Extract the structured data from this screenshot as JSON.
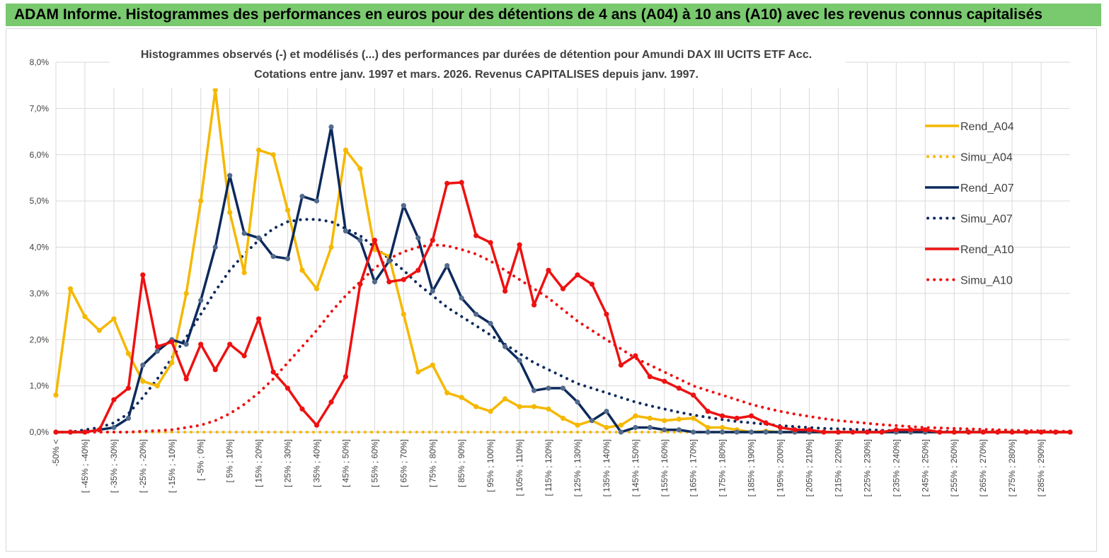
{
  "header": {
    "title": "ADAM Informe. Histogrammes des performances en euros pour des détentions de 4 ans (A04) à 10 ans (A10) avec les revenus connus capitalisés"
  },
  "chart_data": {
    "type": "line",
    "title": "Histogrammes observés (-) et modélisés (...) des performances par durées de détention pour Amundi DAX III UCITS ETF Acc.",
    "subtitle": "Cotations entre janv. 1997 et mars. 2026. Revenus CAPITALISES depuis janv. 1997.",
    "ylim": [
      0,
      8
    ],
    "yticks": [
      0,
      1,
      2,
      3,
      4,
      5,
      6,
      7,
      8
    ],
    "ytick_labels": [
      "0,0%",
      "1,0%",
      "2,0%",
      "3,0%",
      "4,0%",
      "5,0%",
      "6,0%",
      "7,0%",
      "8,0%"
    ],
    "x_tick_labels": [
      "-50% <",
      "[ -45% ; -40%]",
      "[ -35% ; -30%]",
      "[ -25% ; -20%]",
      "[ -15% ; -10%]",
      "[ -5% ; 0%]",
      "[ 5% ; 10%]",
      "[ 15% ; 20%]",
      "[ 25% ; 30%]",
      "[ 35% ; 40%]",
      "[ 45% ; 50%]",
      "[ 55% ; 60%]",
      "[ 65% ; 70%]",
      "[ 75% ; 80%]",
      "[ 85% ; 90%]",
      "[ 95% ; 100%]",
      "[ 105% ; 110%]",
      "[ 115% ; 120%]",
      "[ 125% ; 130%]",
      "[ 135% ; 140%]",
      "[ 145% ; 150%]",
      "[ 155% ; 160%]",
      "[ 165% ; 170%]",
      "[ 175% ; 180%]",
      "[ 185% ; 190%]",
      "[ 195% ; 200%]",
      "[ 205% ; 210%]",
      "[ 215% ; 220%]",
      "[ 225% ; 230%]",
      "[ 235% ; 240%]",
      "[ 245% ; 250%]",
      "[ 255% ; 260%]",
      "[ 265% ; 270%]",
      "[ 275% ; 280%]",
      "[ 285% ; 290%]"
    ],
    "series": [
      {
        "name": "Rend_A04",
        "style": "solid",
        "color": "#f5b800",
        "values": [
          0.8,
          3.1,
          2.5,
          2.2,
          2.45,
          1.7,
          1.1,
          1.0,
          1.5,
          3.0,
          5.0,
          7.4,
          4.75,
          3.45,
          6.1,
          6.0,
          4.8,
          3.5,
          3.1,
          4.0,
          6.1,
          5.7,
          3.95,
          3.8,
          2.55,
          1.3,
          1.45,
          0.85,
          0.75,
          0.55,
          0.45,
          0.72,
          0.55,
          0.55,
          0.5,
          0.3,
          0.15,
          0.25,
          0.1,
          0.15,
          0.35,
          0.3,
          0.25,
          0.28,
          0.3,
          0.1,
          0.1,
          0.05,
          0.0,
          0.02,
          0.0,
          0.0,
          0.0,
          0.0,
          0.0,
          0.0,
          0.0,
          0.0,
          0.0,
          0.0,
          0.0,
          0.0,
          0.0,
          0.0,
          0.0,
          0.0,
          0.0,
          0.0,
          0.0,
          0.0,
          0.0
        ]
      },
      {
        "name": "Simu_A04",
        "style": "dotted",
        "color": "#f5b800",
        "values": [
          0.0,
          0.0,
          0.0,
          0.0,
          0.0,
          0.0,
          0.0,
          0.0,
          0.0,
          0.0,
          0.0,
          0.0,
          0.0,
          0.0,
          0.0,
          0.0,
          0.0,
          0.0,
          0.0,
          0.0,
          0.0,
          0.0,
          0.0,
          0.0,
          0.0,
          0.0,
          0.0,
          0.0,
          0.0,
          0.0,
          0.0,
          0.0,
          0.0,
          0.0,
          0.0,
          0.0,
          0.0,
          0.0,
          0.0,
          0.0,
          0.0,
          0.0,
          0.0,
          0.0,
          0.0,
          0.0,
          0.0,
          0.0,
          0.0,
          0.0,
          0.0,
          0.0,
          0.0,
          0.0,
          0.0,
          0.0,
          0.0,
          0.0,
          0.0,
          0.0,
          0.0,
          0.0,
          0.0,
          0.0,
          0.0,
          0.0,
          0.0,
          0.0,
          0.0,
          0.0,
          0.0
        ]
      },
      {
        "name": "Rend_A07",
        "style": "solid",
        "color": "#0d2a5c",
        "values": [
          0.0,
          0.0,
          0.0,
          0.05,
          0.1,
          0.3,
          1.45,
          1.75,
          2.0,
          1.9,
          2.85,
          4.0,
          5.55,
          4.3,
          4.2,
          3.8,
          3.75,
          5.1,
          5.0,
          6.6,
          4.35,
          4.15,
          3.25,
          3.7,
          4.9,
          4.2,
          3.05,
          3.6,
          2.9,
          2.55,
          2.35,
          1.85,
          1.55,
          0.9,
          0.95,
          0.95,
          0.65,
          0.25,
          0.45,
          0.0,
          0.1,
          0.1,
          0.05,
          0.05,
          0.0,
          0.0,
          0.0,
          0.0,
          0.0,
          0.0,
          0.0,
          0.0,
          0.0,
          0.0,
          0.0,
          0.0,
          0.0,
          0.0,
          0.0,
          0.0,
          0.0,
          0.0,
          0.0,
          0.0,
          0.0,
          0.0,
          0.0,
          0.0,
          0.0,
          0.0,
          0.0
        ]
      },
      {
        "name": "Simu_A07",
        "style": "dotted",
        "color": "#0d2a5c",
        "values": [
          0.0,
          0.0,
          0.05,
          0.1,
          0.2,
          0.4,
          0.75,
          1.15,
          1.6,
          2.05,
          2.55,
          3.05,
          3.5,
          3.85,
          4.15,
          4.4,
          4.55,
          4.6,
          4.6,
          4.55,
          4.4,
          4.25,
          4.0,
          3.75,
          3.5,
          3.2,
          2.95,
          2.7,
          2.5,
          2.3,
          2.1,
          1.9,
          1.7,
          1.5,
          1.35,
          1.2,
          1.05,
          0.95,
          0.85,
          0.75,
          0.65,
          0.57,
          0.5,
          0.43,
          0.37,
          0.32,
          0.27,
          0.23,
          0.2,
          0.17,
          0.14,
          0.12,
          0.1,
          0.08,
          0.07,
          0.06,
          0.05,
          0.04,
          0.03,
          0.03,
          0.02,
          0.02,
          0.01,
          0.01,
          0.01,
          0.01,
          0.0,
          0.0,
          0.0,
          0.0,
          0.0
        ]
      },
      {
        "name": "Rend_A10",
        "style": "solid",
        "color": "#ee1111",
        "values": [
          0.0,
          0.0,
          0.0,
          0.05,
          0.7,
          0.95,
          3.4,
          1.85,
          1.95,
          1.15,
          1.9,
          1.35,
          1.9,
          1.65,
          2.45,
          1.3,
          0.95,
          0.5,
          0.15,
          0.65,
          1.2,
          3.2,
          4.15,
          3.25,
          3.3,
          3.5,
          4.15,
          5.38,
          5.4,
          4.25,
          4.1,
          3.05,
          4.05,
          2.75,
          3.5,
          3.1,
          3.4,
          3.2,
          2.55,
          1.45,
          1.65,
          1.2,
          1.1,
          0.95,
          0.8,
          0.45,
          0.35,
          0.3,
          0.35,
          0.2,
          0.1,
          0.05,
          0.05,
          0.0,
          0.0,
          0.0,
          0.0,
          0.0,
          0.05,
          0.05,
          0.05,
          0.0,
          0.0,
          0.0,
          0.0,
          0.0,
          0.0,
          0.0,
          0.0,
          0.0,
          0.0
        ]
      },
      {
        "name": "Simu_A10",
        "style": "dotted",
        "color": "#ee1111",
        "values": [
          0.0,
          0.0,
          0.0,
          0.0,
          0.0,
          0.0,
          0.02,
          0.03,
          0.05,
          0.1,
          0.15,
          0.25,
          0.4,
          0.6,
          0.85,
          1.15,
          1.5,
          1.85,
          2.2,
          2.6,
          2.95,
          3.25,
          3.55,
          3.75,
          3.9,
          4.0,
          4.05,
          4.03,
          3.95,
          3.85,
          3.7,
          3.5,
          3.3,
          3.1,
          2.9,
          2.65,
          2.4,
          2.2,
          2.0,
          1.8,
          1.6,
          1.45,
          1.3,
          1.15,
          1.0,
          0.9,
          0.8,
          0.7,
          0.6,
          0.52,
          0.45,
          0.39,
          0.34,
          0.29,
          0.25,
          0.22,
          0.19,
          0.16,
          0.14,
          0.12,
          0.1,
          0.09,
          0.08,
          0.07,
          0.06,
          0.05,
          0.04,
          0.03,
          0.03,
          0.02,
          0.02
        ]
      }
    ]
  }
}
